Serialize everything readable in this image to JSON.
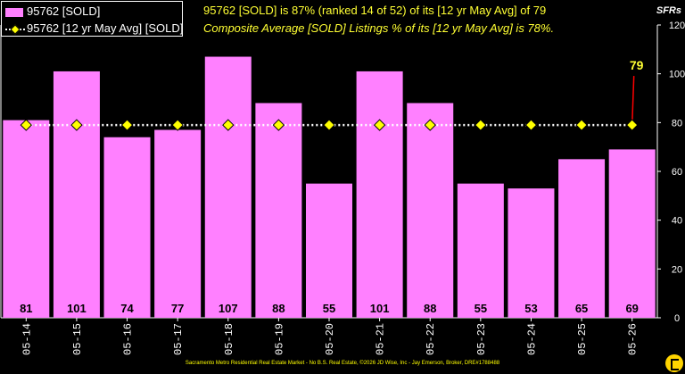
{
  "legend": {
    "bars_label": "95762 [SOLD]",
    "avg_label": "95762 [12 yr May Avg] [SOLD]"
  },
  "headline": "95762 [SOLD] is 87% (ranked 14 of 52) of its [12 yr May Avg] of 79",
  "subline": "Composite Average [SOLD] Listings % of its [12 yr May Avg] is 78%.",
  "unit_label": "SFRs",
  "footer": "Sacramento Metro Residential Real Estate Market - No B.S. Real Estate, ©2026 JD Wise, Inc - Jay Emerson, Broker, DRE#1788488",
  "colors": {
    "bar": "#ff80ff",
    "avg_marker": "#ffff00",
    "avg_line": "#ffffff",
    "annotation": "#ffff33",
    "annotation_line": "#ff0000"
  },
  "chart_data": {
    "type": "bar",
    "categories": [
      "05-14",
      "05-15",
      "05-16",
      "05-17",
      "05-18",
      "05-19",
      "05-20",
      "05-21",
      "05-22",
      "05-23",
      "05-24",
      "05-25",
      "05-26"
    ],
    "series": [
      {
        "name": "95762 [SOLD]",
        "type": "bar",
        "values": [
          81,
          101,
          74,
          77,
          107,
          88,
          55,
          101,
          88,
          55,
          53,
          65,
          69
        ]
      },
      {
        "name": "95762 [12 yr May Avg] [SOLD]",
        "type": "line",
        "values": [
          79,
          79,
          79,
          79,
          79,
          79,
          79,
          79,
          79,
          79,
          79,
          79,
          79
        ]
      }
    ],
    "ylim": [
      0,
      120
    ],
    "yticks": [
      0,
      20,
      40,
      60,
      80,
      100,
      120
    ],
    "y_axis_side": "right",
    "annotation": {
      "category": "05-26",
      "text": "79"
    },
    "data_labels": true,
    "grid": false
  }
}
